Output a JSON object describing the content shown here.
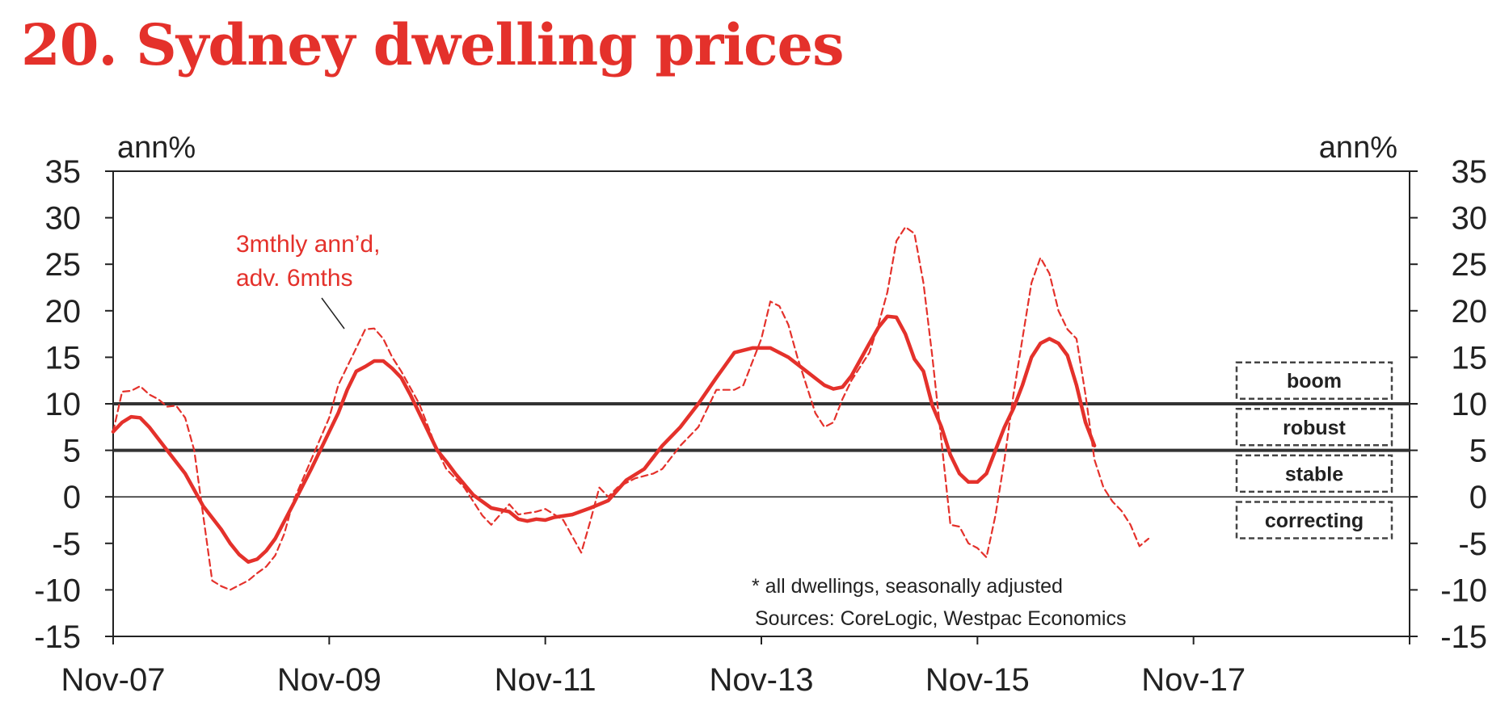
{
  "title": "20. Sydney dwelling prices",
  "chart_data": {
    "type": "line",
    "title": "20. Sydney dwelling prices",
    "ylabel_left": "ann%",
    "ylabel_right": "ann%",
    "ylim": [
      -15,
      35
    ],
    "yticks": [
      35,
      30,
      25,
      20,
      15,
      10,
      5,
      0,
      -5,
      -10,
      -15
    ],
    "ytick_labels": [
      "35",
      "30",
      "25",
      "20",
      "15",
      "10",
      "5",
      "0",
      "-5",
      "-10",
      "-15"
    ],
    "xlim": [
      0,
      144
    ],
    "xticks": [
      0,
      24,
      48,
      72,
      96,
      120,
      144
    ],
    "xtick_labels": [
      "Nov-07",
      "Nov-09",
      "Nov-11",
      "Nov-13",
      "Nov-15",
      "Nov-17",
      ""
    ],
    "reference_lines": [
      10,
      5
    ],
    "zones": [
      "boom",
      "robust",
      "stable",
      "correcting"
    ],
    "annotation": [
      "3mthly ann’d,",
      "adv. 6mths"
    ],
    "notes": [
      "* all dwellings, seasonally adjusted",
      "Sources: CoreLogic, Westpac Economics"
    ],
    "colors": {
      "title": "#e4312b",
      "series": "#e4312b",
      "axis": "#222222"
    },
    "series": [
      {
        "style": "solid",
        "points": [
          [
            0,
            7.0
          ],
          [
            1,
            8.0
          ],
          [
            2,
            8.6
          ],
          [
            3,
            8.5
          ],
          [
            4,
            7.5
          ],
          [
            6,
            5.0
          ],
          [
            8,
            2.5
          ],
          [
            10,
            -1.0
          ],
          [
            12,
            -3.5
          ],
          [
            13,
            -5.0
          ],
          [
            14,
            -6.2
          ],
          [
            15,
            -7.0
          ],
          [
            16,
            -6.7
          ],
          [
            17,
            -5.8
          ],
          [
            18,
            -4.5
          ],
          [
            20,
            -0.8
          ],
          [
            22,
            3.0
          ],
          [
            24,
            7.0
          ],
          [
            25,
            9.0
          ],
          [
            26,
            11.5
          ],
          [
            27,
            13.5
          ],
          [
            28,
            14.0
          ],
          [
            29,
            14.6
          ],
          [
            30,
            14.6
          ],
          [
            31,
            13.8
          ],
          [
            32,
            12.8
          ],
          [
            33,
            11.0
          ],
          [
            34,
            9.0
          ],
          [
            35,
            7.0
          ],
          [
            36,
            5.0
          ],
          [
            37,
            3.8
          ],
          [
            38,
            2.5
          ],
          [
            40,
            0.2
          ],
          [
            42,
            -1.2
          ],
          [
            44,
            -1.6
          ],
          [
            45,
            -2.4
          ],
          [
            46,
            -2.6
          ],
          [
            47,
            -2.4
          ],
          [
            48,
            -2.5
          ],
          [
            49,
            -2.2
          ],
          [
            51,
            -1.9
          ],
          [
            53,
            -1.2
          ],
          [
            55,
            -0.4
          ],
          [
            57,
            1.8
          ],
          [
            59,
            3.0
          ],
          [
            61,
            5.5
          ],
          [
            63,
            7.5
          ],
          [
            65,
            10.0
          ],
          [
            67,
            12.8
          ],
          [
            69,
            15.5
          ],
          [
            71,
            16.0
          ],
          [
            73,
            16.0
          ],
          [
            75,
            15.0
          ],
          [
            77,
            13.5
          ],
          [
            79,
            12.0
          ],
          [
            80,
            11.6
          ],
          [
            81,
            11.8
          ],
          [
            82,
            13.0
          ],
          [
            84,
            16.5
          ],
          [
            85,
            18.2
          ],
          [
            86,
            19.4
          ],
          [
            87,
            19.3
          ],
          [
            88,
            17.5
          ],
          [
            89,
            14.8
          ],
          [
            90,
            13.5
          ],
          [
            91,
            9.8
          ],
          [
            92,
            7.5
          ],
          [
            93,
            4.5
          ],
          [
            94,
            2.5
          ],
          [
            95,
            1.6
          ],
          [
            96,
            1.6
          ],
          [
            97,
            2.5
          ],
          [
            98,
            5.0
          ],
          [
            99,
            7.5
          ],
          [
            100,
            9.5
          ],
          [
            101,
            12.0
          ],
          [
            102,
            15.0
          ],
          [
            103,
            16.5
          ],
          [
            104,
            17.0
          ],
          [
            105,
            16.5
          ],
          [
            106,
            15.2
          ],
          [
            107,
            12.0
          ],
          [
            108,
            8.0
          ],
          [
            109,
            5.5
          ]
        ]
      },
      {
        "style": "dashed",
        "points": [
          [
            0,
            7.0
          ],
          [
            1,
            11.3
          ],
          [
            2,
            11.4
          ],
          [
            3,
            11.9
          ],
          [
            4,
            11.0
          ],
          [
            5,
            10.5
          ],
          [
            6,
            9.7
          ],
          [
            7,
            9.8
          ],
          [
            8,
            8.5
          ],
          [
            9,
            5.0
          ],
          [
            10,
            -2.0
          ],
          [
            11,
            -9.0
          ],
          [
            12,
            -9.6
          ],
          [
            13,
            -10.0
          ],
          [
            14,
            -9.5
          ],
          [
            15,
            -9.0
          ],
          [
            16,
            -8.2
          ],
          [
            17,
            -7.5
          ],
          [
            18,
            -6.3
          ],
          [
            19,
            -4.0
          ],
          [
            20,
            -0.5
          ],
          [
            22,
            4.0
          ],
          [
            24,
            8.5
          ],
          [
            25,
            12.0
          ],
          [
            26,
            14.0
          ],
          [
            27,
            16.0
          ],
          [
            28,
            18.0
          ],
          [
            29,
            18.1
          ],
          [
            30,
            17.0
          ],
          [
            31,
            15.0
          ],
          [
            32,
            13.5
          ],
          [
            34,
            10.0
          ],
          [
            35,
            7.5
          ],
          [
            36,
            5.0
          ],
          [
            37,
            3.0
          ],
          [
            39,
            1.0
          ],
          [
            41,
            -2.0
          ],
          [
            42,
            -3.0
          ],
          [
            44,
            -0.8
          ],
          [
            45,
            -1.9
          ],
          [
            47,
            -1.6
          ],
          [
            48,
            -1.3
          ],
          [
            50,
            -2.5
          ],
          [
            52,
            -6.0
          ],
          [
            53,
            -2.6
          ],
          [
            54,
            1.0
          ],
          [
            55,
            0.0
          ],
          [
            56,
            1.0
          ],
          [
            57,
            1.5
          ],
          [
            58,
            2.0
          ],
          [
            60,
            2.5
          ],
          [
            61,
            3.0
          ],
          [
            63,
            5.5
          ],
          [
            65,
            7.5
          ],
          [
            67,
            11.5
          ],
          [
            69,
            11.5
          ],
          [
            70,
            12.0
          ],
          [
            72,
            17.0
          ],
          [
            73,
            21.0
          ],
          [
            74,
            20.5
          ],
          [
            75,
            18.5
          ],
          [
            76,
            15.0
          ],
          [
            77,
            12.0
          ],
          [
            78,
            9.0
          ],
          [
            79,
            7.5
          ],
          [
            80,
            8.0
          ],
          [
            81,
            10.5
          ],
          [
            82,
            12.5
          ],
          [
            83,
            14.0
          ],
          [
            84,
            15.5
          ],
          [
            85,
            18.5
          ],
          [
            86,
            22.0
          ],
          [
            87,
            27.5
          ],
          [
            88,
            29.0
          ],
          [
            89,
            28.3
          ],
          [
            90,
            23.0
          ],
          [
            91,
            15.0
          ],
          [
            92,
            6.0
          ],
          [
            93,
            -3.0
          ],
          [
            94,
            -3.2
          ],
          [
            95,
            -5.0
          ],
          [
            96,
            -5.5
          ],
          [
            97,
            -6.5
          ],
          [
            98,
            -2.0
          ],
          [
            99,
            4.0
          ],
          [
            100,
            11.0
          ],
          [
            101,
            17.0
          ],
          [
            102,
            23.0
          ],
          [
            103,
            25.7
          ],
          [
            104,
            24.0
          ],
          [
            105,
            20.0
          ],
          [
            106,
            18.0
          ],
          [
            107,
            17.0
          ],
          [
            108,
            11.0
          ],
          [
            109,
            4.0
          ],
          [
            110,
            1.0
          ],
          [
            111,
            -0.5
          ],
          [
            112,
            -1.5
          ],
          [
            113,
            -3.0
          ],
          [
            114,
            -5.3
          ],
          [
            115,
            -4.5
          ]
        ]
      }
    ]
  }
}
